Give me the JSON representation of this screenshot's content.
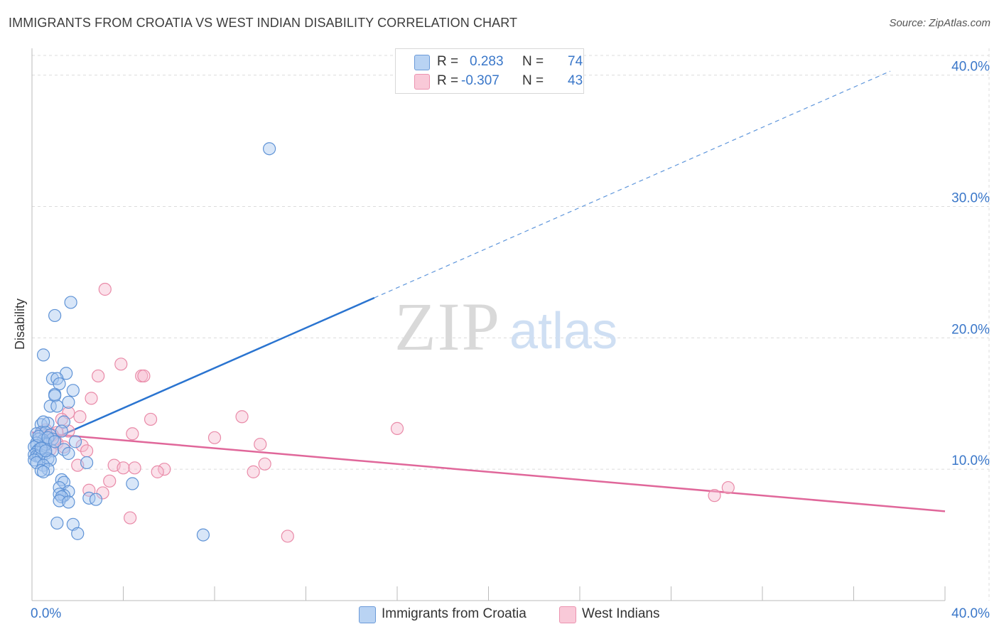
{
  "title": "IMMIGRANTS FROM CROATIA VS WEST INDIAN DISABILITY CORRELATION CHART",
  "source": "Source: ZipAtlas.com",
  "watermark": {
    "zip": "ZIP",
    "atlas": "atlas"
  },
  "colors": {
    "blue_fill": "#a9c8f0",
    "blue_stroke": "#5f93d6",
    "blue_line": "#2a74d0",
    "pink_fill": "#f7bcd0",
    "pink_stroke": "#e98aa8",
    "pink_line": "#e0679a",
    "axis_text": "#3a77c9",
    "grid": "#dcdcdc"
  },
  "legend": {
    "r_label": "R =",
    "n_label": "N =",
    "croatia": {
      "r": "0.283",
      "n": "74"
    },
    "west_indian": {
      "r": "-0.307",
      "n": "43"
    }
  },
  "chart_data": {
    "type": "scatter",
    "title": "IMMIGRANTS FROM CROATIA VS WEST INDIAN DISABILITY CORRELATION CHART",
    "ylabel": "Disability",
    "xlabel": "",
    "xlim": [
      0,
      40
    ],
    "ylim": [
      0,
      41.5
    ],
    "x_tick_labels": {
      "left": "0.0%",
      "right": "40.0%"
    },
    "y_ticks": [
      {
        "value": 10,
        "label": "10.0%"
      },
      {
        "value": 20,
        "label": "20.0%"
      },
      {
        "value": 30,
        "label": "30.0%"
      },
      {
        "value": 40,
        "label": "40.0%"
      }
    ],
    "series": [
      {
        "name": "Immigrants from Croatia",
        "points": [
          [
            10.4,
            34.4
          ],
          [
            1.7,
            22.7
          ],
          [
            1.0,
            21.7
          ],
          [
            0.5,
            18.7
          ],
          [
            1.5,
            17.3
          ],
          [
            0.9,
            16.9
          ],
          [
            1.1,
            16.9
          ],
          [
            1.2,
            16.5
          ],
          [
            1.8,
            16.0
          ],
          [
            1.0,
            15.7
          ],
          [
            1.0,
            15.6
          ],
          [
            1.6,
            15.1
          ],
          [
            0.8,
            14.8
          ],
          [
            1.1,
            14.8
          ],
          [
            0.4,
            13.4
          ],
          [
            0.7,
            13.5
          ],
          [
            1.4,
            13.6
          ],
          [
            0.5,
            13.6
          ],
          [
            1.3,
            12.9
          ],
          [
            0.4,
            12.8
          ],
          [
            0.2,
            12.7
          ],
          [
            0.6,
            12.8
          ],
          [
            0.8,
            12.6
          ],
          [
            0.3,
            12.3
          ],
          [
            0.5,
            12.2
          ],
          [
            0.9,
            12.3
          ],
          [
            1.9,
            12.1
          ],
          [
            0.6,
            12.0
          ],
          [
            0.2,
            12.0
          ],
          [
            0.2,
            11.8
          ],
          [
            0.1,
            11.7
          ],
          [
            0.5,
            11.6
          ],
          [
            0.3,
            11.5
          ],
          [
            0.9,
            11.4
          ],
          [
            1.4,
            11.5
          ],
          [
            0.4,
            11.3
          ],
          [
            0.2,
            11.3
          ],
          [
            0.6,
            11.2
          ],
          [
            1.6,
            11.2
          ],
          [
            0.1,
            11.1
          ],
          [
            0.2,
            11.0
          ],
          [
            0.3,
            11.0
          ],
          [
            0.4,
            10.9
          ],
          [
            0.7,
            10.8
          ],
          [
            0.1,
            10.7
          ],
          [
            0.8,
            10.7
          ],
          [
            0.2,
            10.5
          ],
          [
            0.5,
            10.3
          ],
          [
            2.4,
            10.5
          ],
          [
            0.7,
            10.0
          ],
          [
            0.4,
            9.9
          ],
          [
            0.5,
            9.8
          ],
          [
            1.3,
            9.2
          ],
          [
            1.4,
            9.0
          ],
          [
            4.4,
            8.9
          ],
          [
            1.2,
            8.6
          ],
          [
            1.6,
            8.3
          ],
          [
            1.4,
            8.0
          ],
          [
            1.2,
            8.1
          ],
          [
            1.3,
            7.9
          ],
          [
            2.5,
            7.8
          ],
          [
            2.8,
            7.7
          ],
          [
            1.2,
            7.6
          ],
          [
            1.6,
            7.5
          ],
          [
            1.1,
            5.9
          ],
          [
            1.8,
            5.8
          ],
          [
            2.0,
            5.1
          ],
          [
            7.5,
            5.0
          ],
          [
            0.6,
            11.9
          ],
          [
            0.3,
            12.5
          ],
          [
            0.7,
            12.4
          ],
          [
            0.4,
            11.6
          ],
          [
            1.0,
            12.1
          ],
          [
            0.6,
            11.4
          ]
        ],
        "trend": {
          "x": [
            0,
            37.6
          ],
          "y": [
            11.6,
            40.3
          ],
          "solid_until_x": 15.0
        }
      },
      {
        "name": "West Indians",
        "points": [
          [
            3.2,
            23.7
          ],
          [
            3.9,
            18.0
          ],
          [
            2.9,
            17.1
          ],
          [
            4.8,
            17.1
          ],
          [
            4.9,
            17.1
          ],
          [
            2.6,
            15.4
          ],
          [
            1.6,
            14.3
          ],
          [
            2.1,
            14.0
          ],
          [
            9.2,
            14.0
          ],
          [
            5.2,
            13.8
          ],
          [
            1.3,
            13.8
          ],
          [
            16.0,
            13.1
          ],
          [
            0.6,
            13.0
          ],
          [
            1.6,
            12.9
          ],
          [
            1.1,
            12.8
          ],
          [
            4.4,
            12.7
          ],
          [
            0.4,
            12.7
          ],
          [
            0.7,
            12.5
          ],
          [
            8.0,
            12.4
          ],
          [
            1.0,
            12.3
          ],
          [
            0.5,
            12.1
          ],
          [
            1.1,
            12.0
          ],
          [
            10.0,
            11.9
          ],
          [
            2.2,
            11.8
          ],
          [
            1.4,
            11.7
          ],
          [
            0.8,
            11.5
          ],
          [
            2.4,
            11.4
          ],
          [
            3.6,
            10.3
          ],
          [
            2.0,
            10.3
          ],
          [
            4.0,
            10.1
          ],
          [
            4.5,
            10.1
          ],
          [
            10.2,
            10.4
          ],
          [
            5.8,
            10.0
          ],
          [
            5.5,
            9.8
          ],
          [
            9.7,
            9.8
          ],
          [
            3.4,
            9.1
          ],
          [
            2.5,
            8.4
          ],
          [
            3.1,
            8.2
          ],
          [
            30.5,
            8.6
          ],
          [
            29.9,
            8.0
          ],
          [
            4.3,
            6.3
          ],
          [
            11.2,
            4.9
          ],
          [
            0.9,
            12.6
          ]
        ],
        "trend": {
          "x": [
            0,
            40
          ],
          "y": [
            12.8,
            6.8
          ]
        }
      }
    ],
    "legend_position": "top-center",
    "grid": true
  }
}
